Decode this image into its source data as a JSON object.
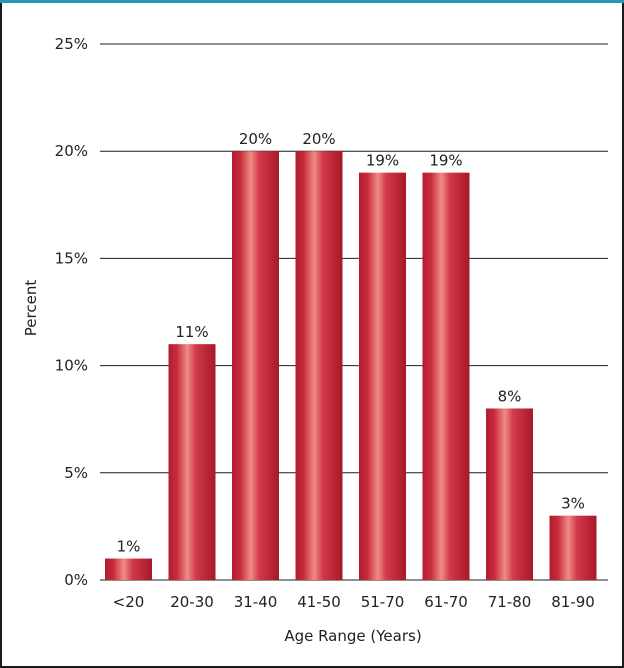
{
  "chart_data": {
    "type": "bar",
    "title": "",
    "xlabel": "Age Range (Years)",
    "ylabel": "Percent",
    "categories": [
      "<20",
      "20-30",
      "31-40",
      "41-50",
      "51-70",
      "61-70",
      "71-80",
      "81-90"
    ],
    "values": [
      1,
      11,
      20,
      20,
      19,
      19,
      8,
      3
    ],
    "value_labels": [
      "1%",
      "11%",
      "20%",
      "20%",
      "19%",
      "19%",
      "8%",
      "3%"
    ],
    "ylim": [
      0,
      25
    ],
    "yticks": [
      0,
      5,
      10,
      15,
      20,
      25
    ],
    "ytick_labels": [
      "0%",
      "5%",
      "10%",
      "15%",
      "20%",
      "25%"
    ],
    "grid": true,
    "legend": "none",
    "colors": {
      "bar_dark": "#b01c30",
      "bar_mid": "#d13a4a",
      "bar_light": "#f08c84",
      "top_band": "#2a97b3",
      "frame": "#1a1a1a"
    }
  }
}
